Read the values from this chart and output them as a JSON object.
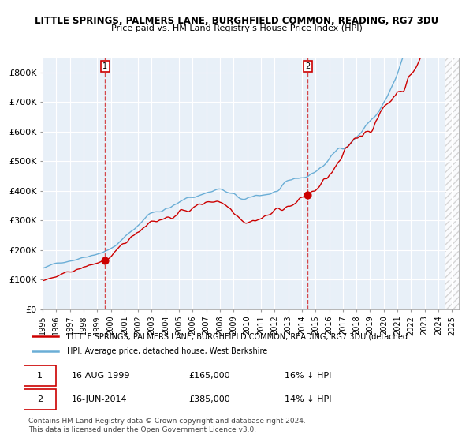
{
  "title_line1": "LITTLE SPRINGS, PALMERS LANE, BURGHFIELD COMMON, READING, RG7 3DU",
  "title_line2": "Price paid vs. HM Land Registry's House Price Index (HPI)",
  "xlabel": "",
  "ylabel": "",
  "ylim": [
    0,
    850000
  ],
  "yticks": [
    0,
    100000,
    200000,
    300000,
    400000,
    500000,
    600000,
    700000,
    800000
  ],
  "ytick_labels": [
    "£0",
    "£100K",
    "£200K",
    "£300K",
    "£400K",
    "£500K",
    "£600K",
    "£700K",
    "£800K"
  ],
  "hpi_color": "#6baed6",
  "price_color": "#cc0000",
  "bg_color": "#e8f0f8",
  "hatch_color": "#cccccc",
  "marker1_date_idx": 57,
  "marker1_value": 165000,
  "marker2_date_idx": 234,
  "marker2_value": 385000,
  "annotation1": {
    "label": "1",
    "date": "16-AUG-1999",
    "price": "£165,000",
    "below": "16% ↓ HPI"
  },
  "annotation2": {
    "label": "2",
    "date": "16-JUN-2014",
    "price": "£385,000",
    "below": "14% ↓ HPI"
  },
  "legend_line1": "LITTLE SPRINGS, PALMERS LANE, BURGHFIELD COMMON, READING, RG7 3DU (detached",
  "legend_line2": "HPI: Average price, detached house, West Berkshire",
  "footer": "Contains HM Land Registry data © Crown copyright and database right 2024.\nThis data is licensed under the Open Government Licence v3.0.",
  "start_year": 1995,
  "end_year": 2025
}
